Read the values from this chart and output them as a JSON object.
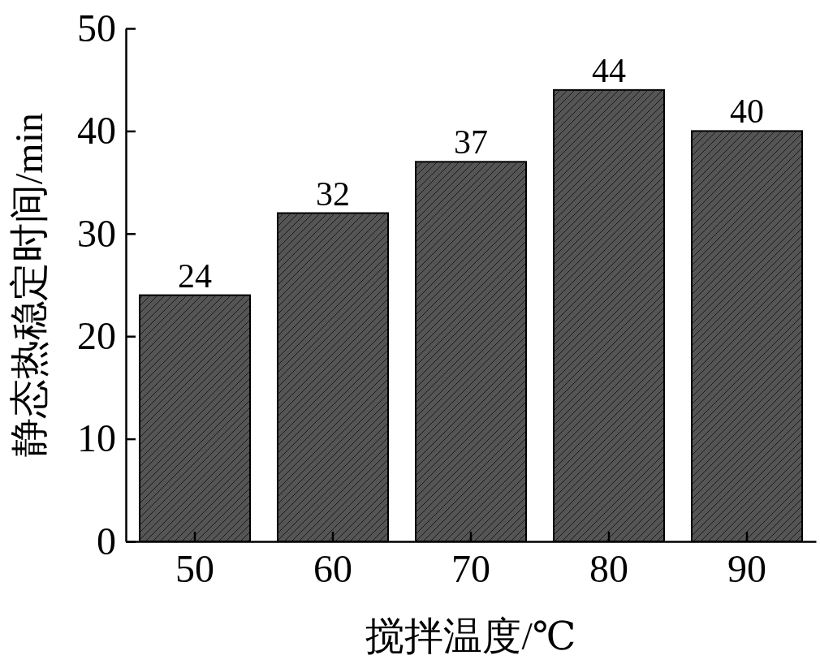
{
  "chart_data": {
    "type": "bar",
    "xlabel": "搅拌温度/℃",
    "ylabel": "静态热稳定时间/min",
    "categories": [
      "50",
      "60",
      "70",
      "80",
      "90"
    ],
    "values": [
      24,
      32,
      37,
      44,
      40
    ],
    "color": "#555555",
    "ylim": [
      0,
      50
    ],
    "yticks": [
      0,
      10,
      20,
      30,
      40,
      50
    ],
    "data_labels": true
  }
}
